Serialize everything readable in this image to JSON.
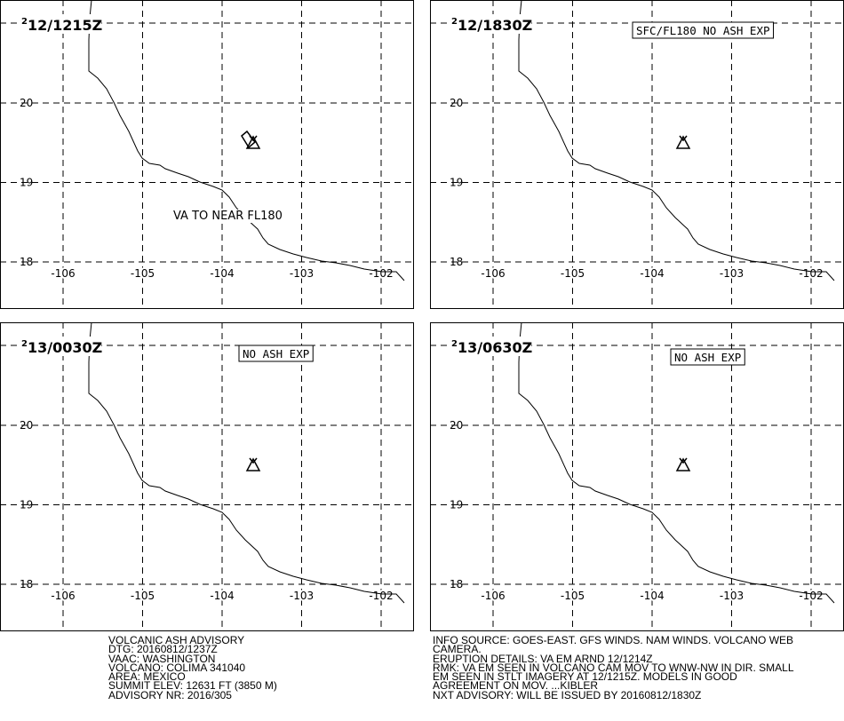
{
  "map": {
    "lat_ticks": [
      20,
      19,
      18
    ],
    "lon_ticks": [
      -106,
      -105,
      -104,
      -103,
      -102
    ],
    "panels": [
      {
        "sup": "2",
        "time": "12/1215Z",
        "label": "VA TO NEAR FL180"
      },
      {
        "sup": "2",
        "time": "12/1830Z",
        "label": "SFC/FL180 NO ASH EXP"
      },
      {
        "sup": "2",
        "time": "13/0030Z",
        "label": "NO ASH EXP"
      },
      {
        "sup": "2",
        "time": "13/0630Z",
        "label": "NO ASH EXP"
      }
    ]
  },
  "advisory": {
    "left": [
      "VOLCANIC ASH ADVISORY",
      "DTG: 20160812/1237Z",
      "VAAC: WASHINGTON",
      "VOLCANO: COLIMA 341040",
      "AREA: MEXICO",
      "SUMMIT ELEV: 12631 FT (3850 M)",
      "ADVISORY NR: 2016/305"
    ],
    "right": [
      "INFO SOURCE: GOES-EAST. GFS WINDS. NAM WINDS. VOLCANO WEB",
      "CAMERA.",
      "ERUPTION DETAILS: VA EM ARND 12/1214Z",
      "RMK: VA EM SEEN IN VOLCANO CAM MOV TO WNW-NW IN DIR. SMALL",
      "EM SEEN IN STLT IMAGERY AT 12/1215Z. MODELS IN GOOD",
      "AGREEMENT ON MOV. ...KIBLER",
      "NXT ADVISORY: WILL BE ISSUED BY 20160812/1830Z"
    ]
  }
}
